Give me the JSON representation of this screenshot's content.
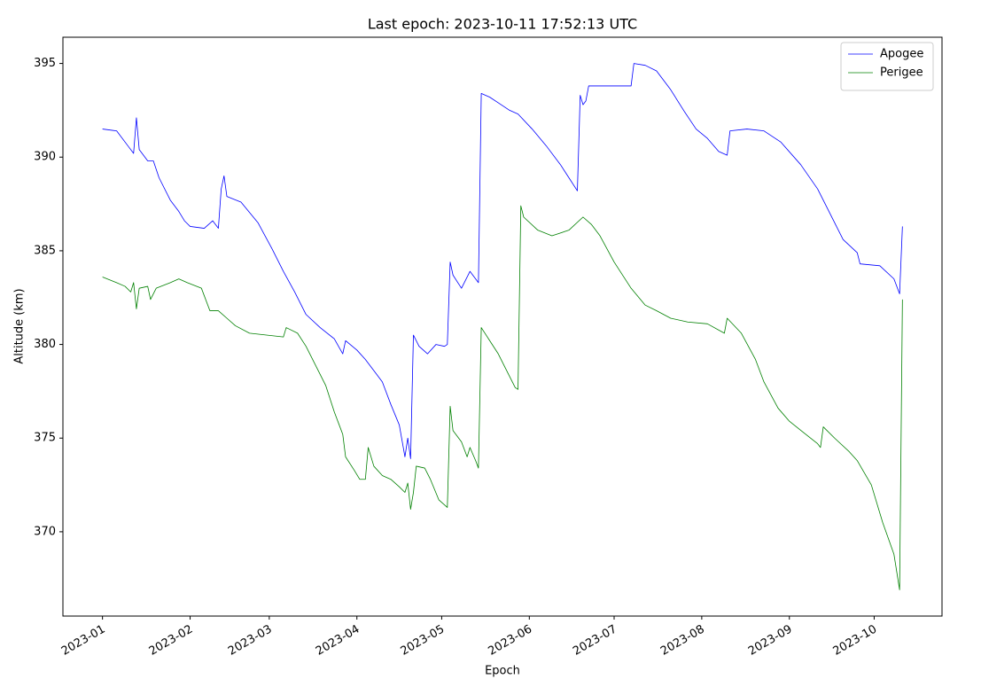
{
  "chart_data": {
    "type": "line",
    "title": "Last epoch: 2023-10-11 17:52:13 UTC",
    "x_label": "Epoch",
    "y_label": "Altitude (km)",
    "xlim": [
      "2022-12-18",
      "2023-10-25"
    ],
    "xticks": [
      {
        "value": "2023-01-01",
        "label": "2023-01"
      },
      {
        "value": "2023-02-01",
        "label": "2023-02"
      },
      {
        "value": "2023-03-01",
        "label": "2023-03"
      },
      {
        "value": "2023-04-01",
        "label": "2023-04"
      },
      {
        "value": "2023-05-01",
        "label": "2023-05"
      },
      {
        "value": "2023-06-01",
        "label": "2023-06"
      },
      {
        "value": "2023-07-01",
        "label": "2023-07"
      },
      {
        "value": "2023-08-01",
        "label": "2023-08"
      },
      {
        "value": "2023-09-01",
        "label": "2023-09"
      },
      {
        "value": "2023-10-01",
        "label": "2023-10"
      }
    ],
    "ylim": [
      365.5,
      396.4
    ],
    "yticks": [
      370,
      375,
      380,
      385,
      390,
      395
    ],
    "grid": false,
    "legend": "upper right",
    "series": [
      {
        "name": "Apogee",
        "color": "#0000ff",
        "x": [
          "2023-01-01",
          "2023-01-06",
          "2023-01-10",
          "2023-01-12",
          "2023-01-13",
          "2023-01-14",
          "2023-01-17",
          "2023-01-19",
          "2023-01-21",
          "2023-01-25",
          "2023-01-28",
          "2023-01-30",
          "2023-02-01",
          "2023-02-06",
          "2023-02-09",
          "2023-02-11",
          "2023-02-12",
          "2023-02-13",
          "2023-02-14",
          "2023-02-19",
          "2023-02-25",
          "2023-03-02",
          "2023-03-06",
          "2023-03-10",
          "2023-03-14",
          "2023-03-19",
          "2023-03-24",
          "2023-03-27",
          "2023-03-28",
          "2023-04-01",
          "2023-04-04",
          "2023-04-07",
          "2023-04-10",
          "2023-04-13",
          "2023-04-16",
          "2023-04-18",
          "2023-04-19",
          "2023-04-20",
          "2023-04-21",
          "2023-04-23",
          "2023-04-26",
          "2023-04-29",
          "2023-05-02",
          "2023-05-03",
          "2023-05-04",
          "2023-05-05",
          "2023-05-08",
          "2023-05-11",
          "2023-05-14",
          "2023-05-15",
          "2023-05-18",
          "2023-05-21",
          "2023-05-25",
          "2023-05-28",
          "2023-06-02",
          "2023-06-07",
          "2023-06-12",
          "2023-06-15",
          "2023-06-18",
          "2023-06-19",
          "2023-06-20",
          "2023-06-21",
          "2023-06-22",
          "2023-06-28",
          "2023-07-07",
          "2023-07-08",
          "2023-07-12",
          "2023-07-16",
          "2023-07-21",
          "2023-07-26",
          "2023-07-30",
          "2023-08-03",
          "2023-08-07",
          "2023-08-10",
          "2023-08-11",
          "2023-08-17",
          "2023-08-23",
          "2023-08-29",
          "2023-09-05",
          "2023-09-11",
          "2023-09-17",
          "2023-09-20",
          "2023-09-25",
          "2023-09-26",
          "2023-10-03",
          "2023-10-08",
          "2023-10-10",
          "2023-10-11"
        ],
        "values": [
          391.5,
          391.4,
          390.6,
          390.2,
          392.1,
          390.4,
          389.8,
          389.8,
          388.9,
          387.7,
          387.1,
          386.6,
          386.3,
          386.2,
          386.6,
          386.2,
          388.3,
          389.0,
          387.9,
          387.6,
          386.5,
          385.1,
          383.9,
          382.8,
          381.6,
          380.9,
          380.3,
          379.5,
          380.2,
          379.7,
          379.2,
          378.6,
          378.0,
          376.8,
          375.7,
          374.0,
          375.0,
          373.9,
          380.5,
          379.9,
          379.5,
          380.0,
          379.9,
          380.0,
          384.4,
          383.7,
          383.0,
          383.9,
          383.3,
          393.4,
          393.2,
          392.9,
          392.5,
          392.3,
          391.5,
          390.6,
          389.6,
          388.9,
          388.2,
          393.3,
          392.8,
          393.0,
          393.8,
          393.8,
          393.8,
          395.0,
          394.9,
          394.6,
          393.6,
          392.4,
          391.5,
          391.0,
          390.3,
          390.1,
          391.4,
          391.5,
          391.4,
          390.8,
          389.6,
          388.3,
          386.5,
          385.6,
          384.9,
          384.3,
          384.2,
          383.5,
          382.7,
          386.3
        ]
      },
      {
        "name": "Perigee",
        "color": "#008000",
        "x": [
          "2023-01-01",
          "2023-01-06",
          "2023-01-09",
          "2023-01-11",
          "2023-01-12",
          "2023-01-13",
          "2023-01-14",
          "2023-01-17",
          "2023-01-18",
          "2023-01-20",
          "2023-01-25",
          "2023-01-28",
          "2023-01-31",
          "2023-02-05",
          "2023-02-08",
          "2023-02-11",
          "2023-02-14",
          "2023-02-17",
          "2023-02-22",
          "2023-02-28",
          "2023-03-06",
          "2023-03-07",
          "2023-03-11",
          "2023-03-14",
          "2023-03-17",
          "2023-03-21",
          "2023-03-24",
          "2023-03-27",
          "2023-03-28",
          "2023-03-31",
          "2023-04-02",
          "2023-04-04",
          "2023-04-05",
          "2023-04-07",
          "2023-04-10",
          "2023-04-13",
          "2023-04-16",
          "2023-04-18",
          "2023-04-19",
          "2023-04-20",
          "2023-04-21",
          "2023-04-22",
          "2023-04-25",
          "2023-04-27",
          "2023-04-30",
          "2023-05-03",
          "2023-05-04",
          "2023-05-05",
          "2023-05-08",
          "2023-05-10",
          "2023-05-11",
          "2023-05-13",
          "2023-05-14",
          "2023-05-15",
          "2023-05-18",
          "2023-05-21",
          "2023-05-24",
          "2023-05-27",
          "2023-05-28",
          "2023-05-29",
          "2023-05-30",
          "2023-06-04",
          "2023-06-09",
          "2023-06-15",
          "2023-06-20",
          "2023-06-23",
          "2023-06-26",
          "2023-07-01",
          "2023-07-07",
          "2023-07-12",
          "2023-07-16",
          "2023-07-21",
          "2023-07-27",
          "2023-08-03",
          "2023-08-09",
          "2023-08-10",
          "2023-08-15",
          "2023-08-20",
          "2023-08-23",
          "2023-08-28",
          "2023-09-01",
          "2023-09-06",
          "2023-09-11",
          "2023-09-12",
          "2023-09-13",
          "2023-09-17",
          "2023-09-22",
          "2023-09-25",
          "2023-09-30",
          "2023-10-04",
          "2023-10-08",
          "2023-10-10",
          "2023-10-11"
        ],
        "values": [
          383.6,
          383.3,
          383.1,
          382.8,
          383.3,
          381.9,
          383.0,
          383.1,
          382.4,
          383.0,
          383.3,
          383.5,
          383.3,
          383.0,
          381.8,
          381.8,
          381.4,
          381.0,
          380.6,
          380.5,
          380.4,
          380.9,
          380.6,
          379.9,
          379.0,
          377.8,
          376.4,
          375.2,
          374.0,
          373.3,
          372.8,
          372.8,
          374.5,
          373.5,
          373.0,
          372.8,
          372.4,
          372.1,
          372.6,
          371.2,
          372.1,
          373.5,
          373.4,
          372.8,
          371.7,
          371.3,
          376.7,
          375.4,
          374.8,
          374.0,
          374.5,
          373.8,
          373.4,
          380.9,
          380.2,
          379.5,
          378.6,
          377.7,
          377.6,
          387.4,
          386.8,
          386.1,
          385.8,
          386.1,
          386.8,
          386.4,
          385.8,
          384.4,
          383.0,
          382.1,
          381.8,
          381.4,
          381.2,
          381.1,
          380.6,
          381.4,
          380.6,
          379.2,
          378.0,
          376.6,
          375.9,
          375.3,
          374.7,
          374.5,
          375.6,
          375.0,
          374.3,
          373.8,
          372.5,
          370.5,
          368.8,
          366.9,
          382.4
        ]
      }
    ]
  }
}
